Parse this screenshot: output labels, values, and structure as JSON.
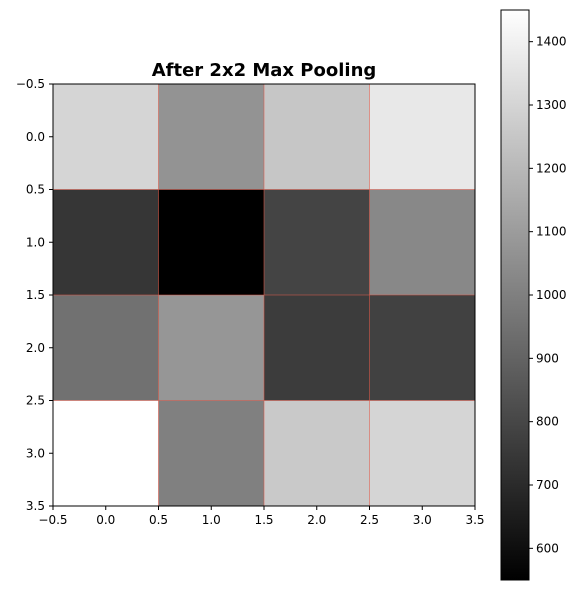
{
  "chart_data": {
    "type": "heatmap",
    "title": "After 2x2 Max Pooling",
    "xlabel": "",
    "ylabel": "",
    "colormap": "gray",
    "grid_color": "#e05a4a",
    "xlim": [
      -0.5,
      3.5
    ],
    "ylim": [
      3.5,
      -0.5
    ],
    "x_ticks": [
      "-0.5",
      "0.0",
      "0.5",
      "1.0",
      "1.5",
      "2.0",
      "2.5",
      "3.0",
      "3.5"
    ],
    "y_ticks": [
      "-0.5",
      "0.0",
      "0.5",
      "1.0",
      "1.5",
      "2.0",
      "2.5",
      "3.0",
      "3.5"
    ],
    "values": [
      [
        1300,
        1070,
        1250,
        1370
      ],
      [
        740,
        550,
        790,
        1030
      ],
      [
        950,
        1080,
        760,
        780
      ],
      [
        1450,
        1000,
        1260,
        1300
      ]
    ],
    "colorbar": {
      "min": 550,
      "max": 1450,
      "ticks": [
        "600",
        "700",
        "800",
        "900",
        "1000",
        "1100",
        "1200",
        "1300",
        "1400"
      ]
    }
  }
}
